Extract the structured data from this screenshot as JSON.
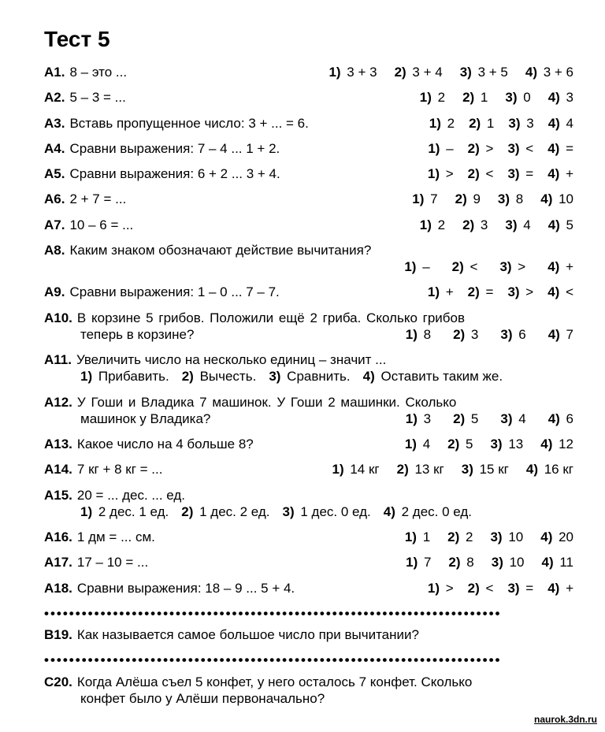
{
  "title": "Тест 5",
  "questions": [
    {
      "id": "A1.",
      "text": "8 – это ...",
      "options": [
        "3 + 3",
        "3 + 4",
        "3 + 5",
        "3 + 6"
      ],
      "layout": "inline-right"
    },
    {
      "id": "A2.",
      "text": "5 – 3 = ...",
      "options": [
        "2",
        "1",
        "0",
        "3"
      ],
      "layout": "inline-right"
    },
    {
      "id": "A3.",
      "text": "Вставь пропущенное число: 3 + ... = 6.",
      "options": [
        "2",
        "1",
        "3",
        "4"
      ],
      "layout": "inline-right-tight"
    },
    {
      "id": "A4.",
      "text": "Сравни выражения: 7 – 4 ... 1 + 2.",
      "options": [
        "–",
        ">",
        "<",
        "="
      ],
      "layout": "inline-right-tight"
    },
    {
      "id": "A5.",
      "text": "Сравни выражения: 6 + 2 ... 3 + 4.",
      "options": [
        ">",
        "<",
        "=",
        "+"
      ],
      "layout": "inline-right-tight"
    },
    {
      "id": "A6.",
      "text": "2 + 7 = ...",
      "options": [
        "7",
        "9",
        "8",
        "10"
      ],
      "layout": "inline-right"
    },
    {
      "id": "A7.",
      "text": "10 – 6 = ...",
      "options": [
        "2",
        "3",
        "4",
        "5"
      ],
      "layout": "inline-right"
    },
    {
      "id": "A8.",
      "text": "Каким знаком обозначают действие вычитания?",
      "options": [
        "–",
        "<",
        ">",
        "+"
      ],
      "layout": "options-below-right"
    },
    {
      "id": "A9.",
      "text": "Сравни выражения: 1 – 0 ... 7 – 7.",
      "options": [
        "+",
        "=",
        ">",
        "<"
      ],
      "layout": "inline-right-tight"
    },
    {
      "id": "A10.",
      "text": "В корзине 5 грибов. Положили ещё 2 гриба. Сколько грибов",
      "text2": "теперь в корзине?",
      "options": [
        "8",
        "3",
        "6",
        "7"
      ],
      "layout": "word-problem-inline"
    },
    {
      "id": "A11.",
      "text": "Увеличить число на несколько единиц – значит ...",
      "options": [
        "Прибавить.",
        "Вычесть.",
        "Сравнить.",
        "Оставить таким же."
      ],
      "layout": "options-below-left"
    },
    {
      "id": "A12.",
      "text": "У Гоши и Владика 7 машинок. У Гоши 2 машинки. Сколько",
      "text2": "машинок у Владика?",
      "options": [
        "3",
        "5",
        "4",
        "6"
      ],
      "layout": "word-problem-inline"
    },
    {
      "id": "A13.",
      "text": "Какое число на 4 больше 8?",
      "options": [
        "4",
        "5",
        "13",
        "12"
      ],
      "layout": "inline-right"
    },
    {
      "id": "A14.",
      "text": "7 кг + 8 кг = ...",
      "options": [
        "14 кг",
        "13 кг",
        "15 кг",
        "16 кг"
      ],
      "layout": "inline-right"
    },
    {
      "id": "A15.",
      "text": "20 = ... дес. ... ед.",
      "options": [
        "2 дес. 1 ед.",
        "1 дес. 2 ед.",
        "1 дес. 0 ед.",
        "2 дес. 0 ед."
      ],
      "layout": "options-below-left"
    },
    {
      "id": "A16.",
      "text": "1 дм = ... см.",
      "options": [
        "1",
        "2",
        "10",
        "20"
      ],
      "layout": "inline-right"
    },
    {
      "id": "A17.",
      "text": "17 – 10 = ...",
      "options": [
        "7",
        "8",
        "10",
        "11"
      ],
      "layout": "inline-right"
    },
    {
      "id": "A18.",
      "text": "Сравни выражения: 18 – 9 ... 5 + 4.",
      "options": [
        ">",
        "<",
        "=",
        "+"
      ],
      "layout": "inline-right-tight"
    }
  ],
  "sep": "•••••••••••••••••••••••••••••••••••••••••••••••••••••••••••••••••••••••••",
  "bonus": [
    {
      "id": "B19.",
      "text": "Как называется самое большое число при вычитании?"
    },
    {
      "id": "C20.",
      "text": "Когда Алёша съел 5 конфет, у него осталось 7 конфет. Сколько",
      "text2": "конфет было у Алёши первоначально?"
    }
  ],
  "footer": "naurok.3dn.ru"
}
